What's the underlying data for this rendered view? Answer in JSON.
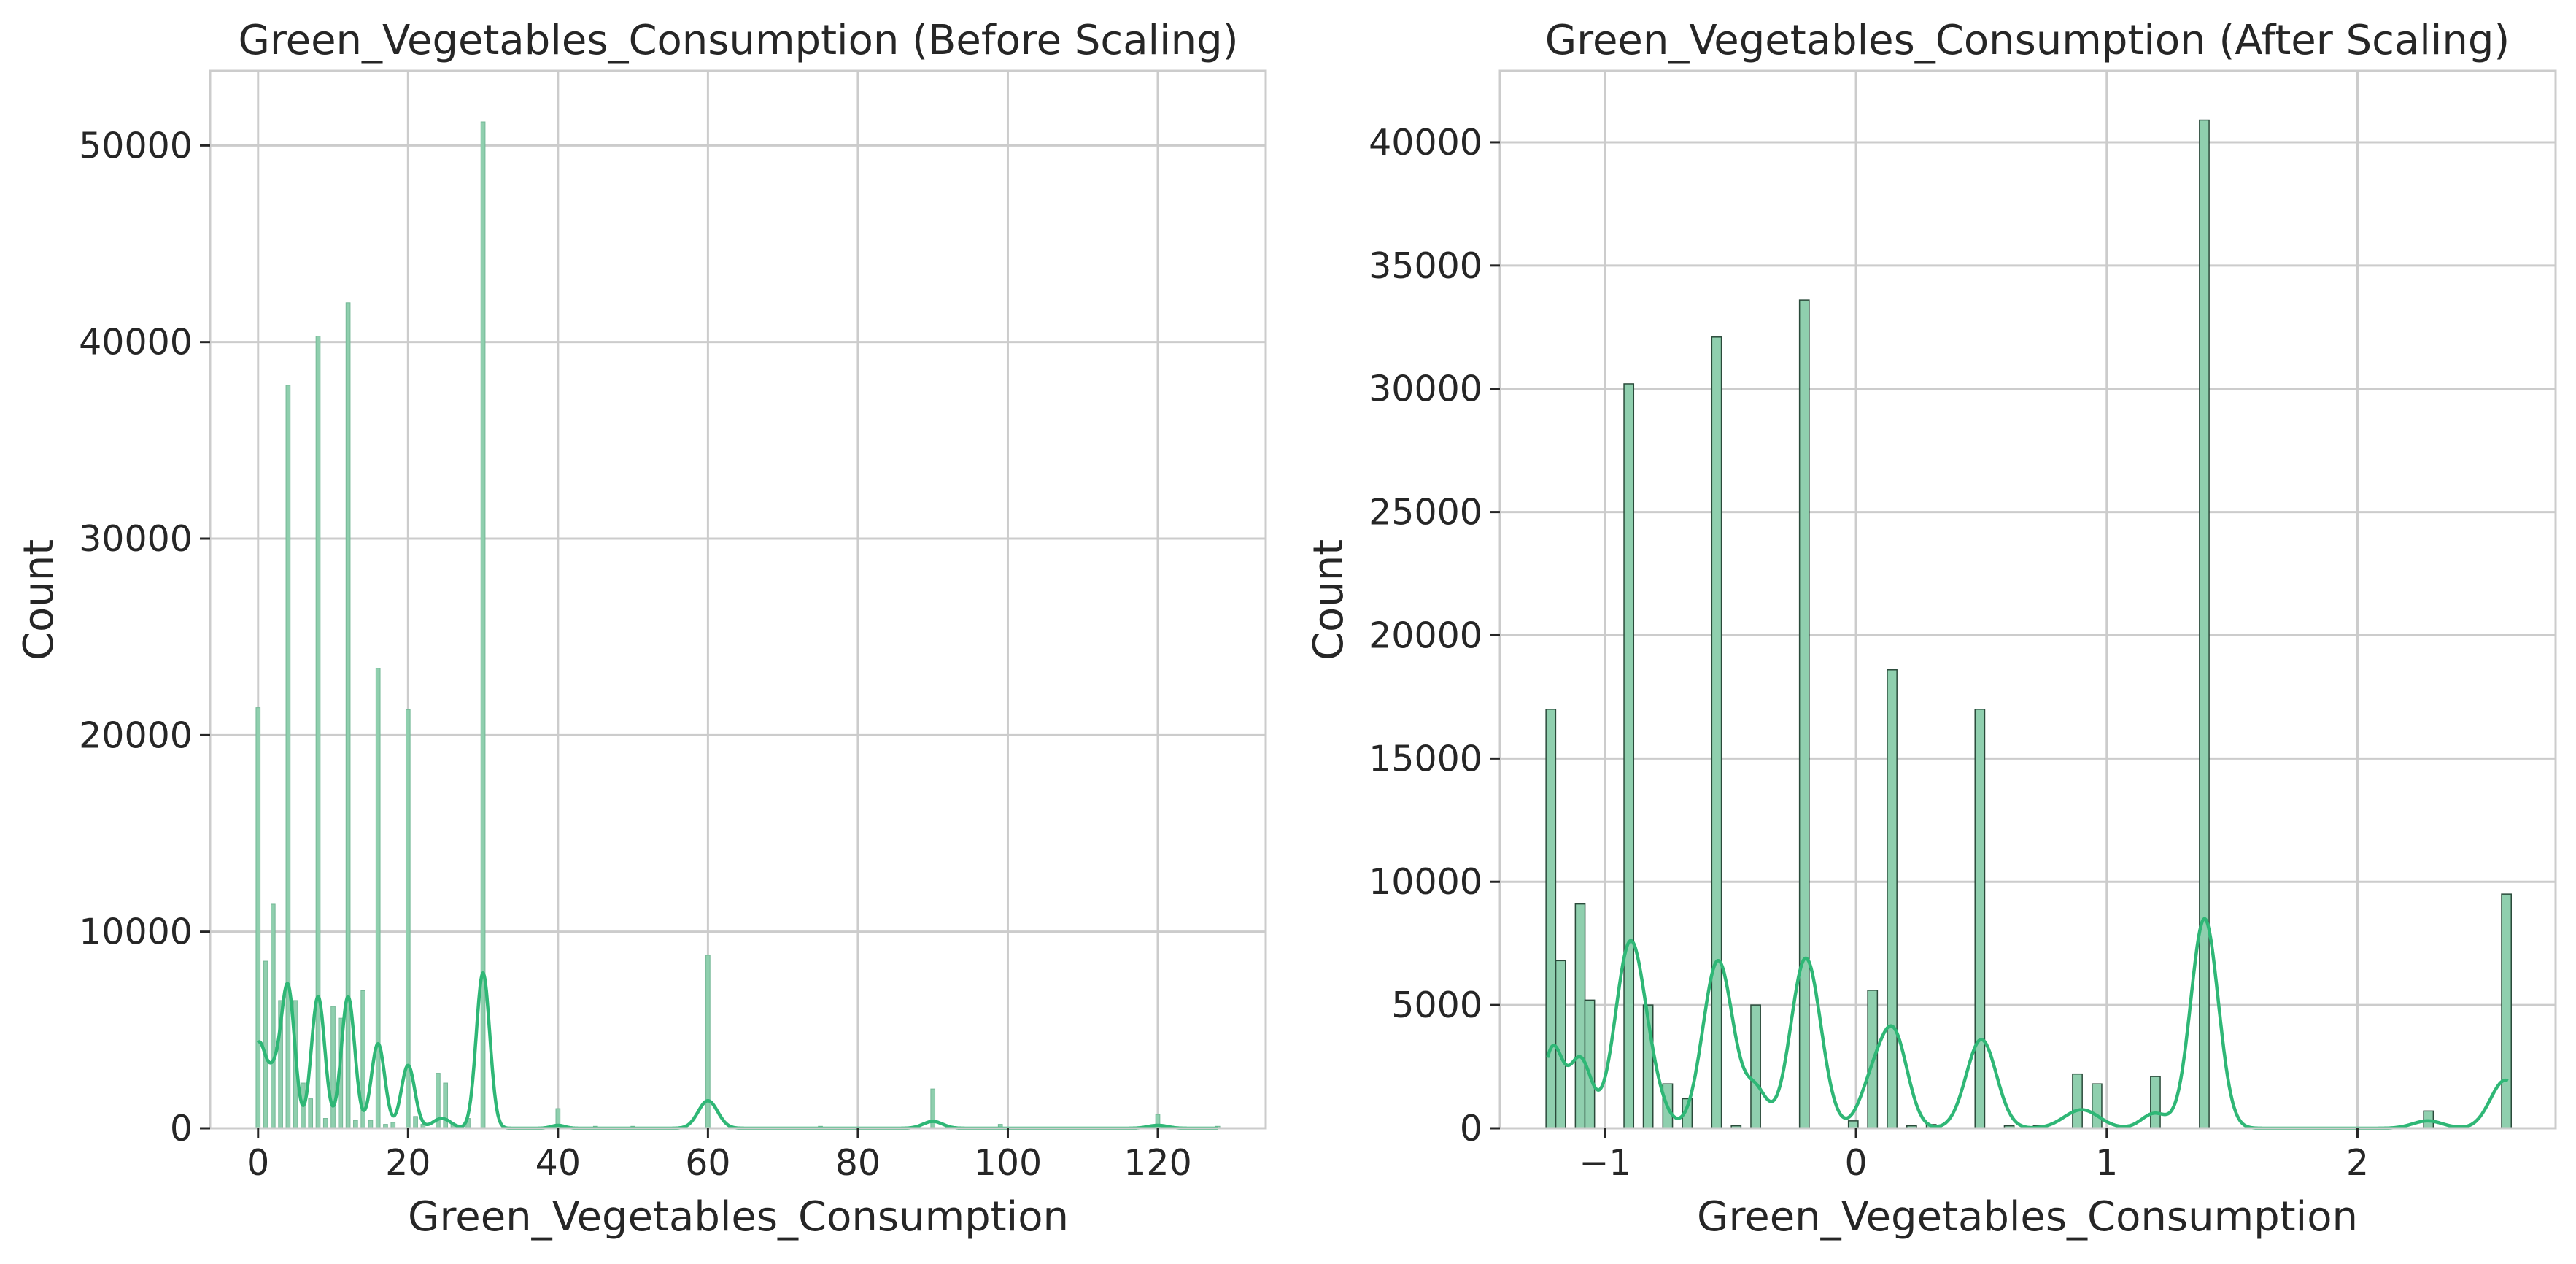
{
  "chart_data": [
    {
      "type": "bar",
      "title": "Green_Vegetables_Consumption (Before Scaling)",
      "xlabel": "Green_Vegetables_Consumption",
      "ylabel": "Count",
      "xlim": [
        -6.4,
        134.4
      ],
      "ylim": [
        0,
        53800
      ],
      "xticks": [
        0,
        20,
        40,
        60,
        80,
        100,
        120
      ],
      "xtick_labels": [
        "0",
        "20",
        "40",
        "60",
        "80",
        "100",
        "120"
      ],
      "yticks": [
        0,
        10000,
        20000,
        30000,
        40000,
        50000
      ],
      "ytick_labels": [
        "0",
        "10000",
        "20000",
        "30000",
        "40000",
        "50000"
      ],
      "grid": true,
      "bar_width": 0.55,
      "bar_color": "#8fcfae",
      "bar_edge": "#74b896",
      "kde_color": "#2fb776",
      "bars": [
        {
          "x": 0,
          "y": 21400
        },
        {
          "x": 1,
          "y": 8500
        },
        {
          "x": 2,
          "y": 11400
        },
        {
          "x": 3,
          "y": 6500
        },
        {
          "x": 4,
          "y": 37800
        },
        {
          "x": 5,
          "y": 6500
        },
        {
          "x": 6,
          "y": 2300
        },
        {
          "x": 7,
          "y": 1500
        },
        {
          "x": 8,
          "y": 40300
        },
        {
          "x": 9,
          "y": 500
        },
        {
          "x": 10,
          "y": 6200
        },
        {
          "x": 11,
          "y": 5600
        },
        {
          "x": 12,
          "y": 42000
        },
        {
          "x": 13,
          "y": 400
        },
        {
          "x": 14,
          "y": 7000
        },
        {
          "x": 15,
          "y": 400
        },
        {
          "x": 16,
          "y": 23400
        },
        {
          "x": 17,
          "y": 200
        },
        {
          "x": 18,
          "y": 300
        },
        {
          "x": 20,
          "y": 21300
        },
        {
          "x": 21,
          "y": 600
        },
        {
          "x": 22,
          "y": 200
        },
        {
          "x": 24,
          "y": 2800
        },
        {
          "x": 25,
          "y": 2300
        },
        {
          "x": 26,
          "y": 200
        },
        {
          "x": 28,
          "y": 500
        },
        {
          "x": 30,
          "y": 51200
        },
        {
          "x": 40,
          "y": 1000
        },
        {
          "x": 45,
          "y": 100
        },
        {
          "x": 50,
          "y": 100
        },
        {
          "x": 60,
          "y": 8800
        },
        {
          "x": 75,
          "y": 100
        },
        {
          "x": 90,
          "y": 2000
        },
        {
          "x": 99,
          "y": 200
        },
        {
          "x": 120,
          "y": 700
        },
        {
          "x": 128,
          "y": 100
        }
      ],
      "kde": {
        "x_range": [
          0,
          128
        ],
        "components": [
          {
            "mu": 0,
            "sigma": 0.9,
            "peak": 4000
          },
          {
            "mu": 2,
            "sigma": 1.0,
            "peak": 2500
          },
          {
            "mu": 4,
            "sigma": 0.9,
            "peak": 7000
          },
          {
            "mu": 8,
            "sigma": 0.9,
            "peak": 6700
          },
          {
            "mu": 12,
            "sigma": 0.9,
            "peak": 6700
          },
          {
            "mu": 16,
            "sigma": 0.9,
            "peak": 4300
          },
          {
            "mu": 20,
            "sigma": 0.9,
            "peak": 3200
          },
          {
            "mu": 24.5,
            "sigma": 1.2,
            "peak": 500
          },
          {
            "mu": 30,
            "sigma": 0.9,
            "peak": 7900
          },
          {
            "mu": 40,
            "sigma": 0.9,
            "peak": 150
          },
          {
            "mu": 60,
            "sigma": 1.3,
            "peak": 1400
          },
          {
            "mu": 90,
            "sigma": 1.3,
            "peak": 350
          },
          {
            "mu": 120,
            "sigma": 1.3,
            "peak": 150
          }
        ]
      }
    },
    {
      "type": "bar",
      "title": "Green_Vegetables_Consumption (After Scaling)",
      "xlabel": "Green_Vegetables_Consumption",
      "ylabel": "Count",
      "xlim": [
        -1.42,
        2.79
      ],
      "ylim": [
        0,
        42900
      ],
      "xticks": [
        -1,
        0,
        1,
        2
      ],
      "xtick_labels": [
        "−1",
        "0",
        "1",
        "2"
      ],
      "yticks": [
        0,
        5000,
        10000,
        15000,
        20000,
        25000,
        30000,
        35000,
        40000
      ],
      "ytick_labels": [
        "0",
        "5000",
        "10000",
        "15000",
        "20000",
        "25000",
        "30000",
        "35000",
        "40000"
      ],
      "grid": true,
      "bar_width": 0.0385,
      "bar_color": "#8fcfae",
      "bar_edge": "#2a4a3a",
      "kde_color": "#2fb776",
      "bars": [
        {
          "x": -1.217,
          "y": 17000
        },
        {
          "x": -1.178,
          "y": 6800
        },
        {
          "x": -1.1,
          "y": 9100
        },
        {
          "x": -1.062,
          "y": 5200
        },
        {
          "x": -0.906,
          "y": 30200
        },
        {
          "x": -0.829,
          "y": 5000
        },
        {
          "x": -0.751,
          "y": 1800
        },
        {
          "x": -0.673,
          "y": 1200
        },
        {
          "x": -0.556,
          "y": 32100
        },
        {
          "x": -0.478,
          "y": 100
        },
        {
          "x": -0.4,
          "y": 5000
        },
        {
          "x": -0.206,
          "y": 33600
        },
        {
          "x": -0.011,
          "y": 300
        },
        {
          "x": 0.066,
          "y": 5600
        },
        {
          "x": 0.144,
          "y": 18600
        },
        {
          "x": 0.222,
          "y": 100
        },
        {
          "x": 0.3,
          "y": 150
        },
        {
          "x": 0.494,
          "y": 17000
        },
        {
          "x": 0.611,
          "y": 100
        },
        {
          "x": 0.727,
          "y": 100
        },
        {
          "x": 0.883,
          "y": 2200
        },
        {
          "x": 0.961,
          "y": 1800
        },
        {
          "x": 1.194,
          "y": 2100
        },
        {
          "x": 1.389,
          "y": 40900
        },
        {
          "x": 2.283,
          "y": 700
        },
        {
          "x": 2.594,
          "y": 9500
        }
      ],
      "kde": {
        "x_range": [
          -1.23,
          2.6
        ],
        "components": [
          {
            "mu": -1.21,
            "sigma": 0.04,
            "peak": 3200
          },
          {
            "mu": -1.1,
            "sigma": 0.045,
            "peak": 2800
          },
          {
            "mu": -0.9,
            "sigma": 0.06,
            "peak": 7500
          },
          {
            "mu": -0.8,
            "sigma": 0.05,
            "peak": 800
          },
          {
            "mu": -0.55,
            "sigma": 0.06,
            "peak": 6800
          },
          {
            "mu": -0.4,
            "sigma": 0.045,
            "peak": 1500
          },
          {
            "mu": -0.2,
            "sigma": 0.06,
            "peak": 6900
          },
          {
            "mu": 0.06,
            "sigma": 0.05,
            "peak": 1500
          },
          {
            "mu": 0.15,
            "sigma": 0.055,
            "peak": 3800
          },
          {
            "mu": 0.5,
            "sigma": 0.06,
            "peak": 3600
          },
          {
            "mu": 0.9,
            "sigma": 0.07,
            "peak": 750
          },
          {
            "mu": 1.19,
            "sigma": 0.05,
            "peak": 600
          },
          {
            "mu": 1.39,
            "sigma": 0.055,
            "peak": 8500
          },
          {
            "mu": 2.28,
            "sigma": 0.06,
            "peak": 300
          },
          {
            "mu": 2.59,
            "sigma": 0.06,
            "peak": 1950
          }
        ]
      }
    }
  ]
}
